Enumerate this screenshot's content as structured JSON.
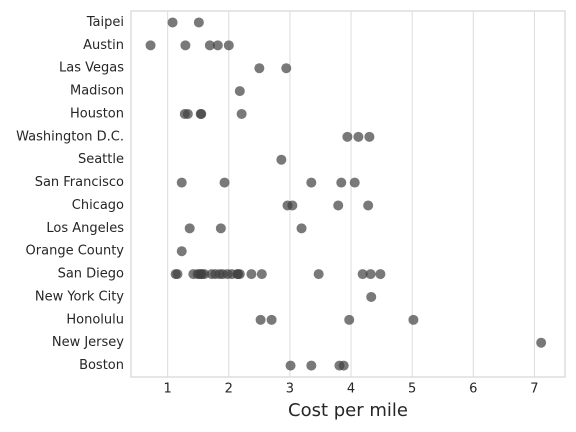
{
  "chart_data": {
    "type": "strip",
    "xlabel": "Cost per mile",
    "categories": [
      "Taipei",
      "Austin",
      "Las Vegas",
      "Madison",
      "Houston",
      "Washington D.C.",
      "Seattle",
      "San Francisco",
      "Chicago",
      "Los Angeles",
      "Orange County",
      "San Diego",
      "New York City",
      "Honolulu",
      "New Jersey",
      "Boston"
    ],
    "values": [
      [
        1.08,
        1.51
      ],
      [
        0.72,
        1.29,
        1.69,
        1.82,
        2.0
      ],
      [
        2.5,
        2.94
      ],
      [
        2.18
      ],
      [
        1.28,
        1.33,
        1.54,
        1.55,
        2.21
      ],
      [
        3.94,
        4.12,
        4.3
      ],
      [
        2.86
      ],
      [
        1.23,
        1.93,
        3.35,
        3.84,
        4.06
      ],
      [
        2.96,
        3.04,
        3.79,
        4.28
      ],
      [
        1.36,
        1.87,
        3.19
      ],
      [
        1.23
      ],
      [
        1.13,
        1.16,
        1.42,
        1.49,
        1.52,
        1.55,
        1.56,
        1.6,
        1.72,
        1.78,
        1.85,
        1.9,
        1.98,
        2.05,
        2.14,
        2.15,
        2.18,
        2.37,
        2.54,
        3.47,
        4.19,
        4.32,
        4.48
      ],
      [
        4.33
      ],
      [
        2.52,
        2.7,
        3.97,
        5.02
      ],
      [
        7.11
      ],
      [
        3.01,
        3.35,
        3.81,
        3.88
      ]
    ],
    "color": "#404040",
    "xlim": [
      0.4,
      7.5
    ],
    "xticks": [
      1,
      2,
      3,
      4,
      5,
      6,
      7
    ],
    "grid": true
  }
}
